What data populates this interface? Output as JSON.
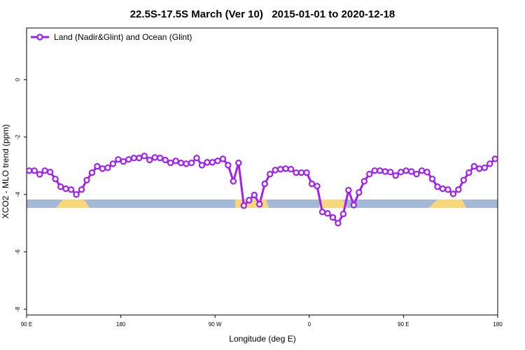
{
  "chart_data": {
    "type": "line",
    "title": "22.5S-17.5S March (Ver 10)   2015-01-01 to 2020-12-18",
    "x_label": "Longitude (deg E)",
    "y_label": "XCO2 - MLO trend (ppm)",
    "x": [
      92.5,
      97.5,
      102.5,
      107.5,
      112.5,
      117.5,
      122.5,
      127.5,
      132.5,
      137.5,
      142.5,
      147.5,
      152.5,
      157.5,
      162.5,
      167.5,
      172.5,
      177.5,
      182.5,
      187.5,
      192.5,
      197.5,
      202.5,
      207.5,
      212.5,
      217.5,
      222.5,
      227.5,
      232.5,
      237.5,
      242.5,
      247.5,
      252.5,
      257.5,
      262.5,
      267.5,
      272.5,
      277.5,
      282.5,
      287.5,
      292.5,
      297.5,
      302.5,
      307.5,
      312.5,
      317.5,
      322.5,
      327.5,
      332.5,
      337.5,
      342.5,
      347.5,
      352.5,
      357.5,
      362.5,
      367.5,
      372.5,
      377.5,
      382.5,
      387.5,
      392.5,
      397.5,
      402.5,
      407.5,
      412.5,
      417.5,
      422.5,
      427.5,
      432.5,
      437.5,
      442.5,
      447.5,
      452.5,
      457.5,
      462.5,
      467.5,
      472.5,
      477.5,
      482.5,
      487.5,
      492.5,
      497.5,
      502.5,
      507.5,
      512.5,
      517.5,
      522.5,
      527.5,
      532.5,
      537.5
    ],
    "series": [
      {
        "name": "Land (Nadir&Glint) and Ocean (Glint)",
        "color": "#a020f0",
        "values": [
          -3.17,
          -3.17,
          -3.3,
          -3.17,
          -3.22,
          -3.46,
          -3.73,
          -3.8,
          -3.83,
          -4.0,
          -3.83,
          -3.5,
          -3.24,
          -3.02,
          -3.1,
          -3.07,
          -2.93,
          -2.78,
          -2.85,
          -2.78,
          -2.73,
          -2.73,
          -2.66,
          -2.8,
          -2.71,
          -2.73,
          -2.8,
          -2.9,
          -2.83,
          -2.9,
          -2.93,
          -2.9,
          -2.73,
          -2.98,
          -2.88,
          -2.88,
          -2.83,
          -2.76,
          -2.98,
          -3.54,
          -2.9,
          -4.39,
          -4.2,
          -4.02,
          -4.34,
          -3.63,
          -3.29,
          -3.15,
          -3.12,
          -3.1,
          -3.12,
          -3.24,
          -3.24,
          -3.24,
          -3.63,
          -3.71,
          -4.61,
          -4.66,
          -4.8,
          -5.0,
          -4.68,
          -3.85,
          -4.37,
          -3.93,
          -3.54,
          -3.29,
          -3.17,
          -3.17,
          -3.2,
          -3.22,
          -3.34,
          -3.22,
          -3.17,
          -3.2,
          -3.29,
          -3.17,
          -3.22,
          -3.46,
          -3.73,
          -3.8,
          -3.83,
          -3.98,
          -3.83,
          -3.5,
          -3.24,
          -3.02,
          -3.1,
          -3.07,
          -2.93,
          -2.76
        ]
      }
    ],
    "xlim": [
      90,
      540
    ],
    "ylim": [
      -8.2,
      1.8
    ],
    "xticks": [
      {
        "value": 90,
        "label": "90 E"
      },
      180,
      {
        "value": 270,
        "label": "90 W"
      },
      {
        "value": 360,
        "label": "0"
      },
      {
        "value": 450,
        "label": "90 E"
      },
      {
        "value": 540,
        "label": "180"
      }
    ],
    "yticks": [
      0,
      -2,
      -4,
      -6,
      -8
    ],
    "legend": "top-left"
  }
}
